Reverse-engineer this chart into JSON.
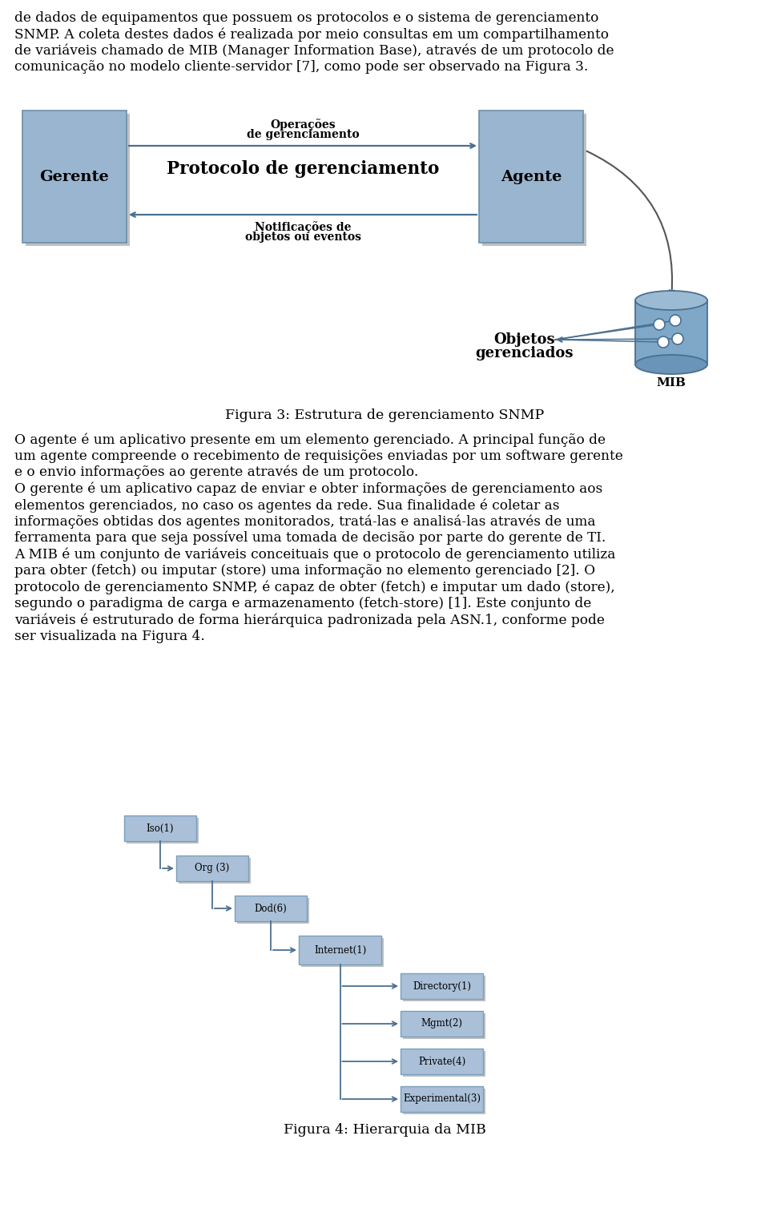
{
  "bg_color": "#ffffff",
  "text_color": "#000000",
  "para1_lines": [
    "de dados de equipamentos que possuem os protocolos e o sistema de gerenciamento",
    "SNMP. A coleta destes dados é realizada por meio consultas em um compartilhamento",
    "de variáveis chamado de MIB (Manager Information Base), através de um protocolo de",
    "comunicação no modelo cliente-servidor [7], como pode ser observado na Figura 3."
  ],
  "fig3_caption": "Figura 3: Estrutura de gerenciamento SNMP",
  "para2_lines": [
    "O agente é um aplicativo presente em um elemento gerenciado. A principal função de",
    "um agente compreende o recebimento de requisições enviadas por um software gerente",
    "e o envio informações ao gerente através de um protocolo.",
    "O gerente é um aplicativo capaz de enviar e obter informações de gerenciamento aos",
    "elementos gerenciados, no caso os agentes da rede. Sua finalidade é coletar as",
    "informações obtidas dos agentes monitorados, tratá-las e analisá-las através de uma",
    "ferramenta para que seja possível uma tomada de decisão por parte do gerente de TI.",
    "A MIB é um conjunto de variáveis conceituais que o protocolo de gerenciamento utiliza",
    "para obter (fetch) ou imputar (store) uma informação no elemento gerenciado [2]. O",
    "protocolo de gerenciamento SNMP, é capaz de obter (fetch) e imputar um dado (store),",
    "segundo o paradigma de carga e armazenamento (fetch-store) [1]. Este conjunto de",
    "variáveis é estruturado de forma hierárquica padronizada pela ASN.1, conforme pode",
    "ser visualizada na Figura 4."
  ],
  "fig4_caption": "Figura 4: Hierarquia da MIB",
  "box_fill": "#9ab5d0",
  "box_fill2": "#a8c0d8",
  "box_stroke": "#6a8faa",
  "arrow_color": "#4a7090",
  "cyl_fill": "#7fa8c8",
  "cyl_top": "#9bbad4",
  "cyl_bot": "#6a95b8",
  "cyl_stroke": "#4a7090",
  "hier_fill": "#aac0d8",
  "hier_stroke": "#7a9fba",
  "shadow_color": "#c0c0c0"
}
